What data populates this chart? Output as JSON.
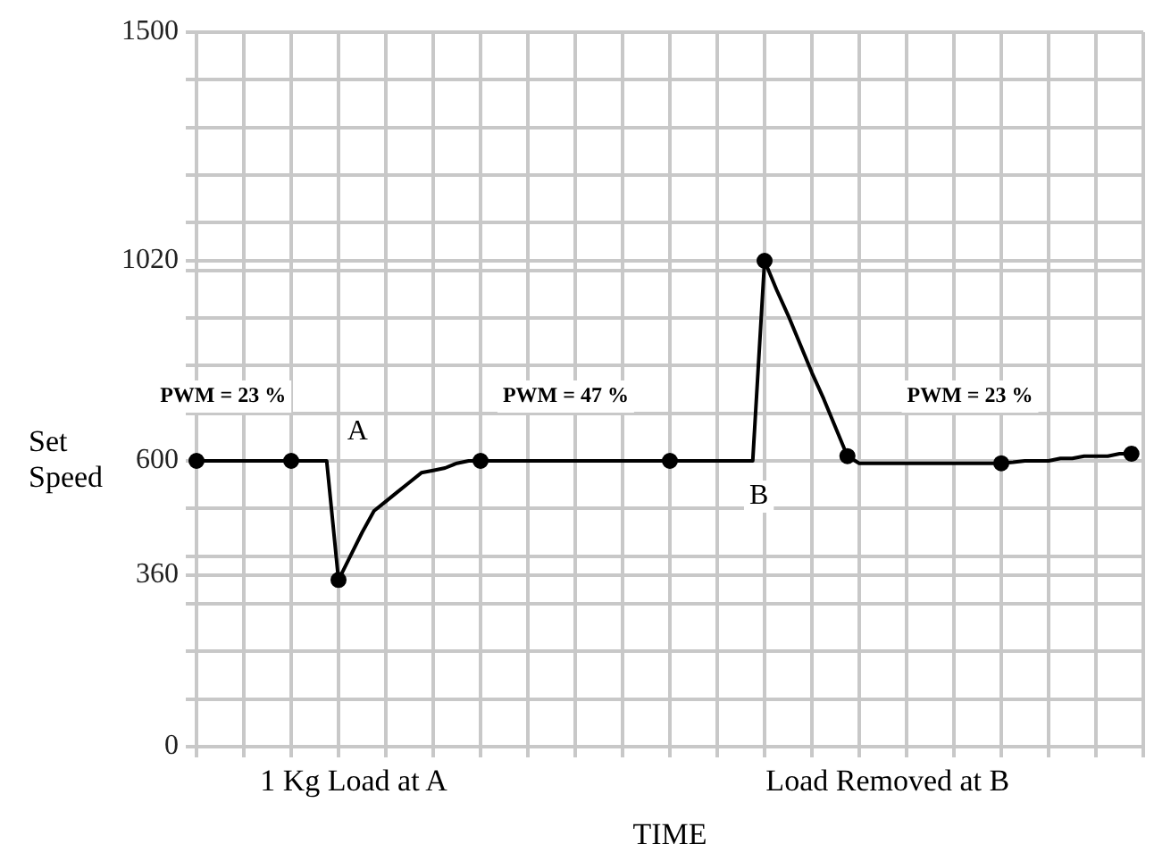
{
  "chart_data": {
    "type": "line",
    "xlabel": "TIME",
    "ylabel": "Set Speed",
    "categories": [
      null,
      null,
      null,
      null,
      null,
      null,
      null,
      null,
      null,
      null,
      null,
      null,
      null,
      null,
      null,
      null,
      null,
      null,
      null,
      null,
      null,
      null,
      null,
      null,
      null,
      null,
      null,
      null,
      null,
      null,
      null,
      null,
      null,
      null,
      null,
      null,
      null,
      null,
      null,
      null,
      null,
      null,
      null,
      null,
      null,
      null,
      null,
      null,
      null,
      null,
      null,
      null,
      null,
      null,
      null,
      null,
      null,
      null,
      null,
      null,
      null,
      null,
      null,
      null,
      null,
      null,
      null,
      null,
      null,
      null,
      null,
      null,
      null,
      null,
      null,
      null,
      null,
      null,
      null,
      null,
      null
    ],
    "series": [
      {
        "color": "#000000",
        "marker": "none",
        "values": [
          600,
          600,
          600,
          600,
          600,
          600,
          600,
          600,
          600,
          600,
          600,
          600,
          350,
          400,
          450,
          495,
          515,
          535,
          555,
          575,
          580,
          585,
          595,
          600,
          600,
          600,
          600,
          600,
          600,
          600,
          600,
          600,
          600,
          600,
          600,
          600,
          600,
          600,
          600,
          600,
          600,
          600,
          600,
          600,
          600,
          600,
          600,
          600,
          1020,
          960,
          905,
          845,
          785,
          730,
          670,
          610,
          595,
          595,
          595,
          595,
          595,
          595,
          595,
          595,
          595,
          595,
          595,
          595,
          595,
          597,
          600,
          600,
          600,
          605,
          605,
          610,
          610,
          610,
          615,
          615,
          null
        ]
      },
      {
        "type": "scatter",
        "color": "#000000",
        "marker": "circle",
        "values": [
          600,
          null,
          null,
          null,
          null,
          null,
          null,
          null,
          600,
          null,
          null,
          null,
          350,
          null,
          null,
          null,
          null,
          null,
          null,
          null,
          null,
          null,
          null,
          null,
          600,
          null,
          null,
          null,
          null,
          null,
          null,
          null,
          null,
          null,
          null,
          null,
          null,
          null,
          null,
          null,
          600,
          null,
          null,
          null,
          null,
          null,
          null,
          null,
          1020,
          null,
          null,
          null,
          null,
          null,
          null,
          610,
          null,
          null,
          null,
          null,
          null,
          null,
          null,
          null,
          null,
          null,
          null,
          null,
          595,
          null,
          null,
          null,
          null,
          null,
          null,
          null,
          null,
          null,
          null,
          615,
          null
        ]
      }
    ],
    "ylim": [
      0,
      1500
    ],
    "yticks": [
      0,
      {
        "value": 100,
        "label": null
      },
      {
        "value": 200,
        "label": null
      },
      {
        "value": 300,
        "label": null
      },
      360,
      {
        "value": 400,
        "label": null
      },
      {
        "value": 500,
        "label": null
      },
      600,
      {
        "value": 700,
        "label": null
      },
      {
        "value": 800,
        "label": null
      },
      {
        "value": 900,
        "label": null
      },
      {
        "value": 1000,
        "label": null
      },
      1020,
      {
        "value": 1100,
        "label": null
      },
      {
        "value": 1200,
        "label": null
      },
      {
        "value": 1300,
        "label": null
      },
      {
        "value": 1400,
        "label": null
      },
      1500
    ],
    "grid": true,
    "line_style": "solid",
    "annotations": [
      "PWM = 23 %",
      "PWM = 47 %",
      "PWM = 23 %",
      "A",
      "B",
      "1 Kg Load at A",
      "Load Removed at B"
    ]
  }
}
